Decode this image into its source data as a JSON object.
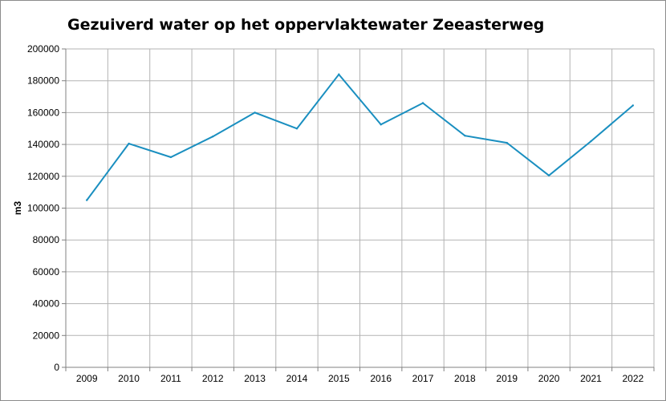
{
  "chart_data": {
    "type": "line",
    "title": "Gezuiverd water op het oppervlaktewater Zeeasterweg",
    "xlabel": "",
    "ylabel": "m3",
    "categories": [
      "2009",
      "2010",
      "2011",
      "2012",
      "2013",
      "2014",
      "2015",
      "2016",
      "2017",
      "2018",
      "2019",
      "2020",
      "2021",
      "2022"
    ],
    "series": [
      {
        "values": [
          105000,
          140500,
          132000,
          145000,
          160000,
          150000,
          184000,
          152500,
          166000,
          145500,
          141000,
          120500,
          142000,
          164500
        ]
      }
    ],
    "ylim": [
      0,
      200000
    ],
    "ytick_step": 20000,
    "grid": true,
    "colors": {
      "line": "#1a8fc0",
      "grid": "#b3b3b3",
      "axis": "#808080"
    }
  }
}
